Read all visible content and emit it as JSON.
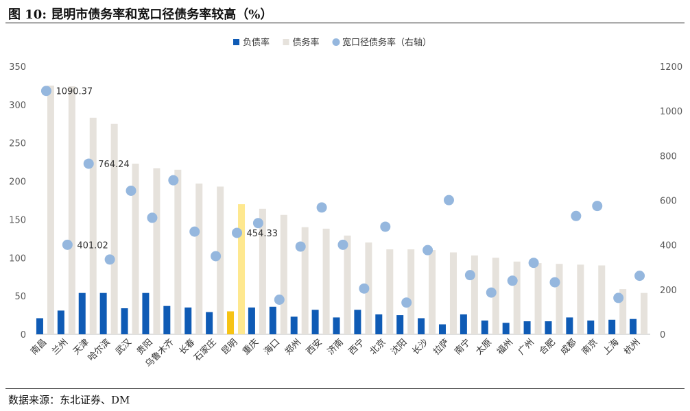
{
  "header": {
    "title": "图 10:  昆明市债务率和宽口径债务率较高（%）"
  },
  "footer": {
    "source": "数据来源：东北证券、DM"
  },
  "colors": {
    "debt_ratio_bar": "#0f5bb5",
    "debt_ratio2_bar": "#e6e2dc",
    "wide_ratio_dot": "#95b7de",
    "highlight_debt_ratio_bar": "#f6c314",
    "highlight_debt_ratio2_bar": "#fee88f",
    "axis": "#595959",
    "rule": "#111111"
  },
  "chart_data": {
    "type": "bar",
    "categories": [
      "南昌",
      "兰州",
      "天津",
      "哈尔滨",
      "武汉",
      "贵阳",
      "乌鲁木齐",
      "长春",
      "石家庄",
      "昆明",
      "重庆",
      "海口",
      "郑州",
      "西安",
      "济南",
      "西宁",
      "北京",
      "沈阳",
      "长沙",
      "拉萨",
      "南宁",
      "太原",
      "福州",
      "广州",
      "合肥",
      "成都",
      "南京",
      "上海",
      "杭州"
    ],
    "highlight_category": "昆明",
    "legend": {
      "position": "top-center",
      "items": [
        "负债率",
        "债务率",
        "宽口径债务率（右轴）"
      ]
    },
    "y_left": {
      "min": 0,
      "max": 350,
      "ticks": [
        "0",
        "50",
        "100",
        "150",
        "200",
        "250",
        "300",
        "350"
      ]
    },
    "y_right": {
      "min": 0,
      "max": 1200,
      "ticks": [
        "0",
        "200",
        "400",
        "600",
        "800",
        "1000",
        "1200"
      ]
    },
    "grid": false,
    "series": [
      {
        "name": "负债率",
        "type": "bar",
        "axis": "left",
        "values": [
          21,
          31,
          54,
          54,
          34,
          54,
          37,
          35,
          29,
          30,
          35,
          36,
          23,
          32,
          22,
          32,
          26,
          25,
          21,
          13,
          26,
          18,
          15,
          17,
          17,
          22,
          18,
          19,
          20
        ]
      },
      {
        "name": "债务率",
        "type": "bar",
        "axis": "left",
        "values": [
          325,
          324,
          283,
          275,
          223,
          217,
          215,
          197,
          193,
          170,
          164,
          156,
          140,
          138,
          129,
          120,
          111,
          111,
          110,
          107,
          103,
          100,
          95,
          93,
          92,
          91,
          90,
          59,
          54
        ]
      },
      {
        "name": "宽口径债务率（右轴）",
        "type": "scatter",
        "axis": "right",
        "values": [
          1090.37,
          401.02,
          764.24,
          335,
          643,
          522,
          690,
          460,
          350,
          454.33,
          498,
          155,
          393,
          568,
          401,
          205,
          482,
          142,
          377,
          601,
          265,
          187,
          240,
          320,
          233,
          530,
          575,
          163,
          262
        ]
      }
    ],
    "data_labels": [
      {
        "category": "南昌",
        "text": "1090.37"
      },
      {
        "category": "兰州",
        "text": "401.02"
      },
      {
        "category": "天津",
        "text": "764.24"
      },
      {
        "category": "昆明",
        "text": "454.33"
      }
    ]
  }
}
